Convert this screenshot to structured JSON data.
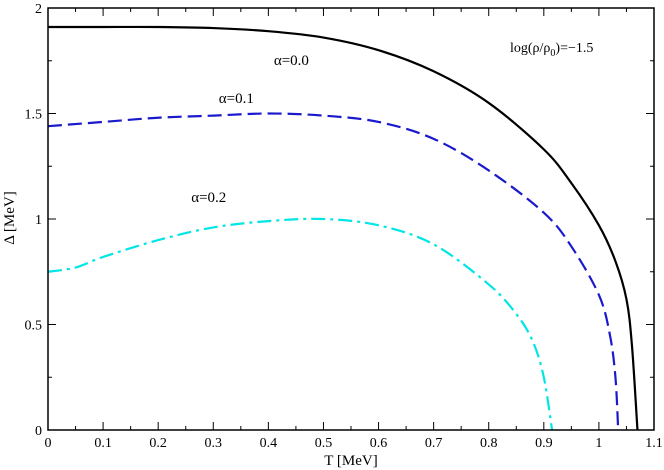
{
  "chart_data": {
    "type": "line",
    "xlabel": "T [MeV]",
    "ylabel": "Δ [MeV]",
    "xlim": [
      0,
      1.1
    ],
    "ylim": [
      0,
      2
    ],
    "x_ticks": [
      "0",
      "0.1",
      "0.2",
      "0.3",
      "0.4",
      "0.5",
      "0.6",
      "0.7",
      "0.8",
      "0.9",
      "1",
      "1.1"
    ],
    "y_ticks": [
      "0",
      "0.5",
      "1",
      "1.5",
      "2"
    ],
    "grid": false,
    "annotation": "log(ρ/ρ0)=−1.5",
    "series": [
      {
        "name": "α=0.0",
        "color": "#000000",
        "dash": "solid",
        "points": [
          [
            0,
            1.91
          ],
          [
            0.1,
            1.91
          ],
          [
            0.2,
            1.91
          ],
          [
            0.3,
            1.905
          ],
          [
            0.4,
            1.89
          ],
          [
            0.5,
            1.86
          ],
          [
            0.6,
            1.8
          ],
          [
            0.7,
            1.7
          ],
          [
            0.8,
            1.55
          ],
          [
            0.9,
            1.33
          ],
          [
            0.95,
            1.17
          ],
          [
            1.0,
            0.97
          ],
          [
            1.03,
            0.8
          ],
          [
            1.05,
            0.62
          ],
          [
            1.06,
            0.4
          ],
          [
            1.07,
            0
          ]
        ]
      },
      {
        "name": "α=0.1",
        "color": "#1a1acc",
        "dash": "dashed",
        "points": [
          [
            0,
            1.44
          ],
          [
            0.1,
            1.46
          ],
          [
            0.2,
            1.48
          ],
          [
            0.3,
            1.49
          ],
          [
            0.4,
            1.5
          ],
          [
            0.5,
            1.49
          ],
          [
            0.6,
            1.46
          ],
          [
            0.7,
            1.38
          ],
          [
            0.8,
            1.23
          ],
          [
            0.9,
            1.03
          ],
          [
            0.95,
            0.87
          ],
          [
            1.0,
            0.64
          ],
          [
            1.02,
            0.45
          ],
          [
            1.03,
            0.25
          ],
          [
            1.035,
            0
          ]
        ]
      },
      {
        "name": "α=0.2",
        "color": "#00e5e5",
        "dash": "dashdot",
        "points": [
          [
            0,
            0.75
          ],
          [
            0.05,
            0.77
          ],
          [
            0.1,
            0.82
          ],
          [
            0.2,
            0.9
          ],
          [
            0.3,
            0.96
          ],
          [
            0.4,
            0.99
          ],
          [
            0.5,
            1.0
          ],
          [
            0.6,
            0.97
          ],
          [
            0.7,
            0.88
          ],
          [
            0.8,
            0.69
          ],
          [
            0.85,
            0.55
          ],
          [
            0.88,
            0.42
          ],
          [
            0.9,
            0.25
          ],
          [
            0.915,
            0
          ]
        ]
      }
    ]
  }
}
